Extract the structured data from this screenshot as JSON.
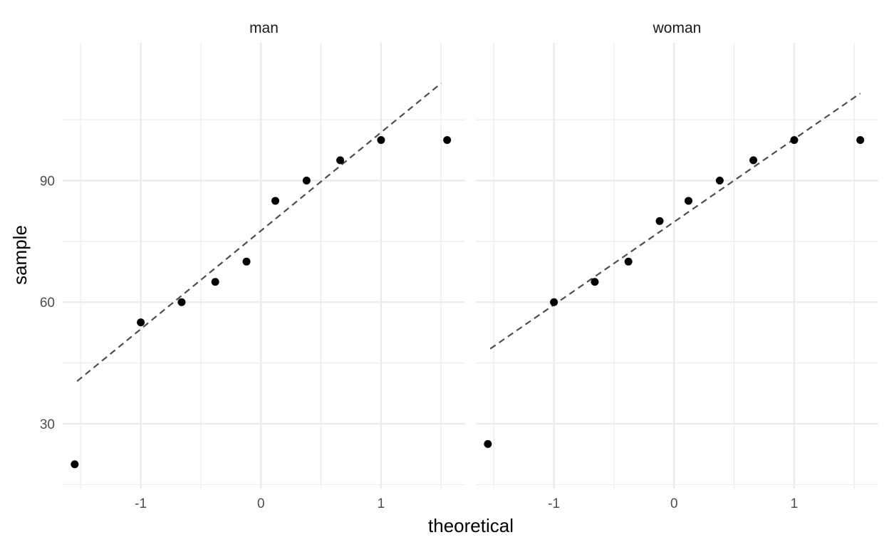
{
  "chart_data": {
    "type": "scatter",
    "facet_var": "gender",
    "xlabel": "theoretical",
    "ylabel": "sample",
    "x_ticks": [
      -1,
      0,
      1
    ],
    "x_tick_labels": [
      "-1",
      "0",
      "1"
    ],
    "y_ticks": [
      30,
      60,
      90
    ],
    "y_tick_labels": [
      "30",
      "60",
      "90"
    ],
    "xlim": [
      -1.65,
      1.7
    ],
    "ylim": [
      14,
      124
    ],
    "grid": true,
    "legend": "none",
    "colors": {
      "points": "#000000",
      "line": "#4d4d4d",
      "grid": "#ebebeb"
    },
    "panels": [
      {
        "name": "man",
        "points": [
          {
            "x": -1.55,
            "y": 20
          },
          {
            "x": -1.0,
            "y": 55
          },
          {
            "x": -0.66,
            "y": 60
          },
          {
            "x": -0.38,
            "y": 65
          },
          {
            "x": -0.12,
            "y": 70
          },
          {
            "x": 0.12,
            "y": 85
          },
          {
            "x": 0.38,
            "y": 90
          },
          {
            "x": 0.66,
            "y": 95
          },
          {
            "x": 1.0,
            "y": 100
          },
          {
            "x": 1.55,
            "y": 100
          }
        ],
        "qq_line": [
          {
            "x": -1.53,
            "y": 40.5
          },
          {
            "x": 1.5,
            "y": 114
          }
        ]
      },
      {
        "name": "woman",
        "points": [
          {
            "x": -1.55,
            "y": 25
          },
          {
            "x": -1.0,
            "y": 60
          },
          {
            "x": -0.66,
            "y": 65
          },
          {
            "x": -0.38,
            "y": 70
          },
          {
            "x": -0.12,
            "y": 80
          },
          {
            "x": 0.12,
            "y": 85
          },
          {
            "x": 0.38,
            "y": 90
          },
          {
            "x": 0.66,
            "y": 95
          },
          {
            "x": 1.0,
            "y": 100
          },
          {
            "x": 1.55,
            "y": 100
          }
        ],
        "qq_line": [
          {
            "x": -1.53,
            "y": 48.5
          },
          {
            "x": 1.55,
            "y": 111.5
          }
        ]
      }
    ]
  }
}
